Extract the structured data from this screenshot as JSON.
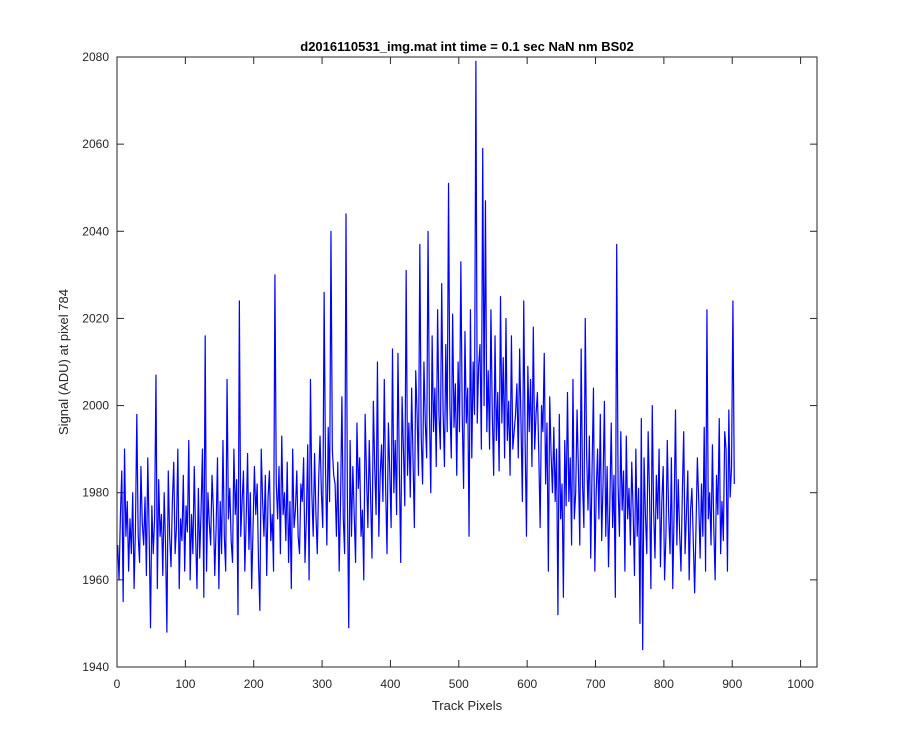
{
  "chart_data": {
    "type": "line",
    "title": "d2016110531_img.mat int time = 0.1 sec  NaN nm BS02",
    "xlabel": "Track Pixels",
    "ylabel": "Signal (ADU) at pixel 784",
    "xlim": [
      0,
      1024
    ],
    "ylim": [
      1940,
      2080
    ],
    "xticks": [
      0,
      100,
      200,
      300,
      400,
      500,
      600,
      700,
      800,
      900,
      1000
    ],
    "yticks": [
      1940,
      1960,
      1980,
      2000,
      2020,
      2040,
      2060,
      2080
    ],
    "grid": false,
    "series_color": "#0000ff",
    "series": [
      {
        "x_start": 1,
        "x_step": 2,
        "values": [
          1968,
          1960,
          1975,
          1985,
          1955,
          1990,
          1970,
          1978,
          1962,
          1974,
          1966,
          1980,
          1958,
          1972,
          1998,
          1970,
          1964,
          1986,
          1973,
          1968,
          1979,
          1961,
          1988,
          1971,
          1949,
          1977,
          1966,
          1974,
          2007,
          1958,
          1983,
          1970,
          1975,
          1961,
          1980,
          1968,
          1948,
          1985,
          1970,
          1963,
          1978,
          1987,
          1966,
          1972,
          1990,
          1958,
          1974,
          1969,
          1984,
          1962,
          1977,
          1971,
          1992,
          1960,
          1975,
          1966,
          1986,
          1970,
          1958,
          1981,
          1965,
          1976,
          1990,
          1956,
          2016,
          1962,
          1980,
          1973,
          1968,
          1984,
          1976,
          1961,
          1972,
          1988,
          1958,
          1978,
          1966,
          1992,
          1970,
          1962,
          2006,
          1974,
          1981,
          1969,
          1964,
          1990,
          1975,
          1983,
          1952,
          2024,
          1970,
          1978,
          1985,
          1962,
          1974,
          1989,
          1967,
          1980,
          1958,
          1972,
          1986,
          1975,
          1982,
          1964,
          1953,
          1990,
          1978,
          1970,
          1984,
          1961,
          1979,
          1985,
          1969,
          1975,
          1962,
          2030,
          1982,
          1974,
          1986,
          1966,
          1993,
          1975,
          1980,
          1969,
          1987,
          1964,
          1978,
          1958,
          1990,
          1972,
          1976,
          1985,
          1970,
          1966,
          1982,
          1978,
          1988,
          1964,
          1974,
          1991,
          1960,
          2006,
          1980,
          1970,
          1989,
          1975,
          1966,
          1983,
          1993,
          1980,
          1972,
          2026,
          1986,
          1968,
          1995,
          1978,
          2040,
          1990,
          1984,
          1982,
          1970,
          1987,
          1962,
          1978,
          2002,
          1974,
          1966,
          2044,
          1980,
          1949,
          1992,
          1970,
          1986,
          1975,
          1964,
          1996,
          1981,
          1988,
          1970,
          1976,
          1960,
          1998,
          1984,
          1972,
          1992,
          1979,
          1965,
          2001,
          1986,
          1975,
          2010,
          1970,
          1984,
          1991,
          1978,
          2006,
          1981,
          1966,
          1996,
          1985,
          1972,
          2013,
          1980,
          1992,
          1975,
          2012,
          1986,
          1964,
          2002,
          1990,
          1977,
          2031,
          1984,
          1996,
          1979,
          2004,
          1988,
          1972,
          2008,
          1998,
          1984,
          2037,
          1993,
          1982,
          2010,
          1996,
          1988,
          2040,
          1999,
          1980,
          2016,
          1994,
          2004,
          1986,
          2022,
          1998,
          1990,
          2028,
          1999,
          1986,
          2014,
          1994,
          2051,
          2000,
          1988,
          2021,
          1995,
          2005,
          1984,
          2010,
          1994,
          2033,
          1998,
          1981,
          2017,
          1996,
          2004,
          1970,
          2022,
          1988,
          2010,
          1998,
          2079,
          1996,
          2009,
          2014,
          1990,
          2059,
          2000,
          2047,
          1994,
          2008,
          1990,
          2022,
          1998,
          1984,
          2016,
          1992,
          2003,
          1985,
          2025,
          1996,
          2011,
          1988,
          2020,
          1992,
          2001,
          1984,
          2016,
          1990,
          1994,
          1998,
          2005,
          1988,
          2013,
          1996,
          1978,
          2024,
          1992,
          1970,
          2009,
          1994,
          2006,
          1986,
          2018,
          1990,
          1998,
          2003,
          1989,
          1972,
          2000,
          1994,
          2012,
          1982,
          1996,
          1962,
          2002,
          1989,
          1980,
          1995,
          1978,
          1990,
          1952,
          1998,
          1974,
          1982,
          1956,
          1992,
          1977,
          2003,
          1978,
          1988,
          1968,
          2006,
          1974,
          1980,
          1999,
          1985,
          1968,
          2013,
          1982,
          1972,
          2020,
          1989,
          1976,
          1993,
          1965,
          1986,
          2004,
          1962,
          1980,
          1990,
          1974,
          1998,
          1969,
          1982,
          2001,
          1970,
          1986,
          1963,
          1978,
          1996,
          1972,
          1984,
          1956,
          2037,
          1982,
          1970,
          1994,
          1976,
          1985,
          1962,
          1993,
          1974,
          1981,
          1968,
          1987,
          1976,
          1961,
          1990,
          1970,
          1981,
          1950,
          1997,
          1944,
          1988,
          1975,
          1966,
          1994,
          1980,
          1958,
          2000,
          1976,
          1965,
          1984,
          1974,
          1990,
          1963,
          1978,
          1986,
          1960,
          1970,
          1992,
          1975,
          1966,
          1988,
          1958,
          1976,
          1999,
          1968,
          1983,
          1971,
          1962,
          1980,
          1994,
          1966,
          1975,
          1985,
          1960,
          1976,
          1981,
          1969,
          1957,
          1972,
          1988,
          1978,
          1965,
          1982,
          1970,
          1995,
          1962,
          2022,
          1974,
          1980,
          1968,
          1991,
          1972,
          1960,
          1984,
          1975,
          1997,
          1966,
          1978,
          1969,
          1994,
          1990,
          1962,
          1999,
          1979,
          1986,
          2024,
          1982
        ]
      }
    ]
  }
}
